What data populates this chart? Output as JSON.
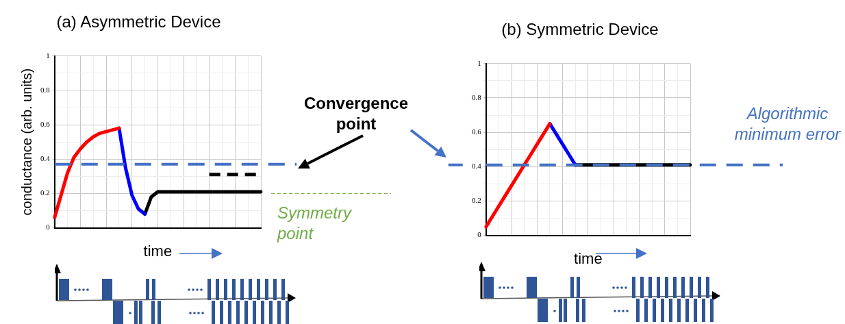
{
  "chart_data": [
    {
      "type": "line",
      "title": "(a) Asymmetric Device",
      "xlabel": "time",
      "ylabel": "conductance (arb. units)",
      "annotations": [
        "Convergence point"
      ],
      "categories": [
        null,
        null,
        null,
        null,
        null,
        null,
        null,
        null,
        null,
        null,
        null,
        null,
        null,
        null,
        null,
        null,
        null,
        null,
        null,
        null,
        null,
        null,
        null,
        null,
        null,
        null,
        null,
        null,
        null,
        null,
        null,
        null,
        null
      ],
      "series": [
        {
          "color": "#ff0000",
          "values": [
            0.06,
            0.19,
            0.32,
            0.41,
            0.46,
            0.5,
            0.53,
            0.55,
            0.56,
            0.57,
            0.58,
            null,
            null,
            null,
            null,
            null,
            null,
            null,
            null,
            null,
            null,
            null,
            null,
            null,
            null,
            null,
            null,
            null,
            null,
            null,
            null,
            null,
            null
          ]
        },
        {
          "color": "#0000ff",
          "values": [
            null,
            null,
            null,
            null,
            null,
            null,
            null,
            null,
            null,
            null,
            0.58,
            0.35,
            0.19,
            0.11,
            0.08,
            null,
            null,
            null,
            null,
            null,
            null,
            null,
            null,
            null,
            null,
            null,
            null,
            null,
            null,
            null,
            null,
            null,
            null
          ]
        },
        {
          "color": "#000000",
          "values": [
            null,
            null,
            null,
            null,
            null,
            null,
            null,
            null,
            null,
            null,
            null,
            null,
            null,
            null,
            0.08,
            0.18,
            0.21,
            0.21,
            0.21,
            0.21,
            0.21,
            0.21,
            0.21,
            0.21,
            0.21,
            0.21,
            0.21,
            0.21,
            0.21,
            0.21,
            0.21,
            0.21,
            0.21
          ]
        },
        {
          "color": "#000000",
          "line_style": "dashed",
          "values": [
            null,
            null,
            null,
            null,
            null,
            null,
            null,
            null,
            null,
            null,
            null,
            null,
            null,
            null,
            null,
            null,
            null,
            null,
            null,
            null,
            null,
            null,
            null,
            null,
            0.31,
            0.31,
            0.31,
            0.31,
            0.31,
            0.31,
            0.31,
            0.31,
            0.31
          ]
        }
      ],
      "ylim": [
        0,
        1
      ],
      "yticks": [
        0,
        {
          "value": 0.1,
          "label": null
        },
        0.2,
        {
          "value": 0.3,
          "label": null
        },
        0.4,
        {
          "value": 0.5,
          "label": null
        },
        0.6,
        {
          "value": 0.7,
          "label": null
        },
        0.8,
        {
          "value": 0.9,
          "label": null
        },
        1
      ],
      "ref_lines": [
        {
          "axis": "y",
          "value": 0.37,
          "color": "#4472c4",
          "line_style": "dashed"
        },
        {
          "axis": "y",
          "value": 0.2,
          "label": "Symmetry point",
          "color": "#70ad47",
          "line_style": "dashed"
        }
      ],
      "grid": true,
      "legend": false,
      "marker": "none",
      "tick_labels": "y"
    },
    {
      "type": "line",
      "title": "(b) Symmetric Device",
      "xlabel": "time",
      "categories": [
        null,
        null,
        null,
        null,
        null,
        null,
        null,
        null,
        null,
        null,
        null,
        null,
        null,
        null,
        null,
        null,
        null,
        null,
        null,
        null,
        null,
        null,
        null,
        null,
        null,
        null,
        null,
        null,
        null,
        null,
        null,
        null,
        null
      ],
      "series": [
        {
          "color": "#ff0000",
          "values": [
            0.05,
            0.11,
            0.17,
            0.23,
            0.29,
            0.35,
            0.41,
            0.47,
            0.53,
            0.59,
            0.65,
            null,
            null,
            null,
            null,
            null,
            null,
            null,
            null,
            null,
            null,
            null,
            null,
            null,
            null,
            null,
            null,
            null,
            null,
            null,
            null,
            null,
            null
          ]
        },
        {
          "color": "#0000ff",
          "values": [
            null,
            null,
            null,
            null,
            null,
            null,
            null,
            null,
            null,
            null,
            0.65,
            0.59,
            0.53,
            0.47,
            0.41,
            null,
            null,
            null,
            null,
            null,
            null,
            null,
            null,
            null,
            null,
            null,
            null,
            null,
            null,
            null,
            null,
            null,
            null
          ]
        },
        {
          "color": "#000000",
          "values": [
            null,
            null,
            null,
            null,
            null,
            null,
            null,
            null,
            null,
            null,
            null,
            null,
            null,
            null,
            0.41,
            0.41,
            0.41,
            0.41,
            0.41,
            0.41,
            0.41,
            0.41,
            0.41,
            0.41,
            0.41,
            0.41,
            0.41,
            0.41,
            0.41,
            0.41,
            0.41,
            0.41,
            0.41
          ]
        }
      ],
      "ylim": [
        0,
        1
      ],
      "yticks": [
        0,
        {
          "value": 0.1,
          "label": null
        },
        0.2,
        {
          "value": 0.3,
          "label": null
        },
        0.4,
        {
          "value": 0.5,
          "label": null
        },
        0.6,
        {
          "value": 0.7,
          "label": null
        },
        0.8,
        {
          "value": 0.9,
          "label": null
        },
        1
      ],
      "ref_lines": [
        {
          "axis": "y",
          "value": 0.41,
          "label": "Algorithmic minimum error",
          "color": "#4472c4",
          "line_style": "dashed"
        }
      ],
      "grid": true,
      "legend": false,
      "marker": "none",
      "tick_labels": "y"
    }
  ]
}
